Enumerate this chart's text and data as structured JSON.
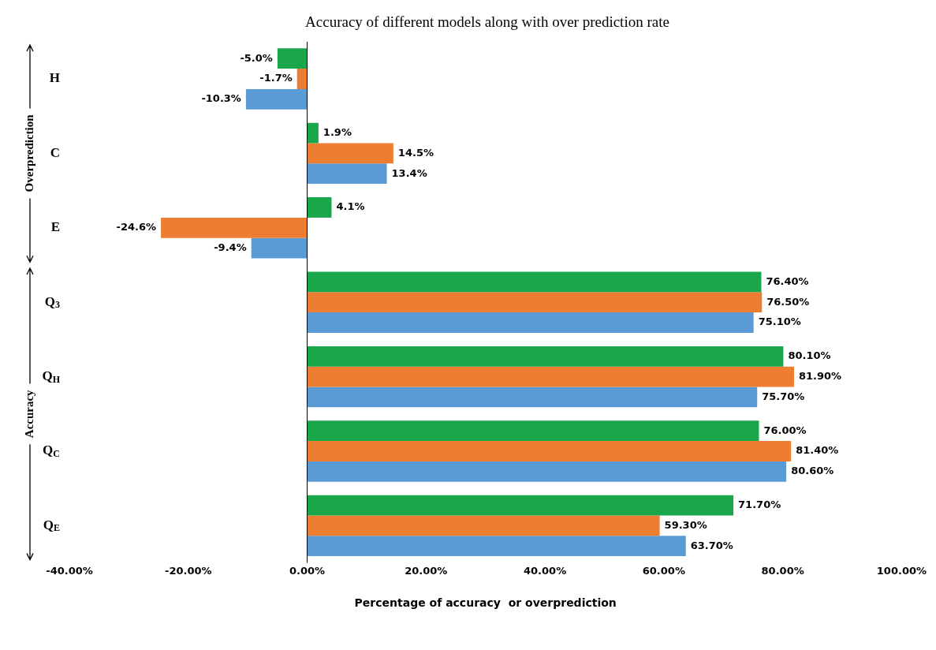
{
  "chart_data": {
    "type": "bar",
    "orientation": "horizontal",
    "title": "Accuracy of different models along with over prediction rate",
    "xlabel": "Percentage of accuracy  or overprediction",
    "categories": [
      "H",
      "C",
      "E",
      "Q$_{3}$",
      "Q$_{H}$",
      "Q$_{C}$",
      "Q$_{E}$"
    ],
    "series": [
      {
        "color": "#1aa64a",
        "values": [
          -5.0,
          1.9,
          4.1,
          76.4,
          80.1,
          76.0,
          71.7
        ],
        "value_labels": [
          "-5.0%",
          "1.9%",
          "4.1%",
          "76.40%",
          "80.10%",
          "76.00%",
          "71.70%"
        ]
      },
      {
        "color": "#ed7d31",
        "values": [
          -1.7,
          14.5,
          -24.6,
          76.5,
          81.9,
          81.4,
          59.3
        ],
        "value_labels": [
          "-1.7%",
          "14.5%",
          "-24.6%",
          "76.50%",
          "81.90%",
          "81.40%",
          "59.30%"
        ]
      },
      {
        "color": "#5b9bd5",
        "values": [
          -10.3,
          13.4,
          -9.4,
          75.1,
          75.7,
          80.6,
          63.7
        ],
        "value_labels": [
          "-10.3%",
          "13.4%",
          "-9.4%",
          "75.10%",
          "75.70%",
          "80.60%",
          "63.70%"
        ]
      }
    ],
    "xlim": [
      -40,
      100
    ],
    "xticks": [
      {
        "value": -40,
        "label": "-40.00%"
      },
      {
        "value": -20,
        "label": "-20.00%"
      },
      {
        "value": 0,
        "label": "0.00%"
      },
      {
        "value": 20,
        "label": "20.00%"
      },
      {
        "value": 40,
        "label": "40.00%"
      },
      {
        "value": 60,
        "label": "60.00%"
      },
      {
        "value": 80,
        "label": "80.00%"
      },
      {
        "value": 100,
        "label": "100.00%"
      }
    ],
    "annotations": [
      "Overprediction",
      "Accuracy"
    ],
    "ref_lines": [
      {
        "axis": "x",
        "value": 0,
        "color": "#000000"
      }
    ],
    "grid": false,
    "legend": false
  }
}
